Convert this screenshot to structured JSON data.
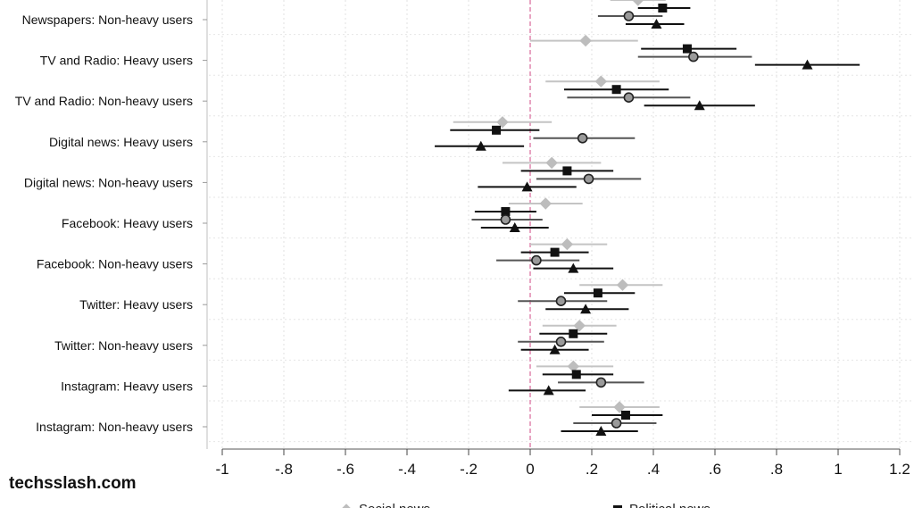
{
  "watermark": "techsslash.com",
  "chart_data": {
    "type": "scatter",
    "subtype": "coefficient-plot-with-confidence-intervals",
    "orientation": "horizontal",
    "xlim": [
      -1,
      1.2
    ],
    "xticks": [
      -1,
      -0.8,
      -0.6,
      -0.4,
      -0.2,
      0,
      0.2,
      0.4,
      0.6,
      0.8,
      1,
      1.2
    ],
    "xtick_labels": [
      "-1",
      "-.8",
      "-.6",
      "-.4",
      "-.2",
      "0",
      ".2",
      ".4",
      ".6",
      ".8",
      "1",
      "1.2"
    ],
    "reference_line": 0,
    "grid": true,
    "legend_placement": "bottom",
    "legend_labels": [
      "Social news",
      "Political news"
    ],
    "categories": [
      "Newspapers: Non-heavy users",
      "TV and Radio: Heavy users",
      "TV and Radio: Non-heavy users",
      "Digital news: Heavy users",
      "Digital news: Non-heavy users",
      "Facebook: Heavy users",
      "Facebook: Non-heavy users",
      "Twitter: Heavy users",
      "Twitter: Non-heavy users",
      "Instagram: Heavy users",
      "Instagram: Non-heavy users"
    ],
    "series": [
      {
        "marker": "diamond",
        "color": "#bdbdbd",
        "estimates": [
          0.35,
          0.18,
          0.23,
          -0.09,
          0.07,
          0.05,
          0.12,
          0.3,
          0.16,
          0.14,
          0.29
        ],
        "ci_low": [
          0.26,
          0.0,
          0.05,
          -0.25,
          -0.09,
          -0.07,
          0.0,
          0.16,
          0.04,
          0.02,
          0.16
        ],
        "ci_high": [
          0.44,
          0.35,
          0.42,
          0.07,
          0.23,
          0.17,
          0.25,
          0.43,
          0.28,
          0.27,
          0.42
        ]
      },
      {
        "marker": "square",
        "color": "#111111",
        "estimates": [
          0.43,
          0.51,
          0.28,
          -0.11,
          0.12,
          -0.08,
          0.08,
          0.22,
          0.14,
          0.15,
          0.31
        ],
        "ci_low": [
          0.35,
          0.36,
          0.11,
          -0.26,
          -0.03,
          -0.18,
          -0.03,
          0.11,
          0.03,
          0.04,
          0.2
        ],
        "ci_high": [
          0.52,
          0.67,
          0.45,
          0.03,
          0.27,
          0.02,
          0.19,
          0.34,
          0.25,
          0.27,
          0.43
        ]
      },
      {
        "marker": "circle",
        "color": "#555555",
        "estimates": [
          0.32,
          0.53,
          0.32,
          0.17,
          0.19,
          -0.08,
          0.02,
          0.1,
          0.1,
          0.23,
          0.28
        ],
        "ci_low": [
          0.22,
          0.35,
          0.12,
          0.01,
          0.02,
          -0.19,
          -0.11,
          -0.04,
          -0.04,
          0.09,
          0.14
        ],
        "ci_high": [
          0.43,
          0.72,
          0.52,
          0.34,
          0.36,
          0.04,
          0.16,
          0.25,
          0.24,
          0.37,
          0.41
        ]
      },
      {
        "marker": "triangle",
        "color": "#111111",
        "estimates": [
          0.41,
          0.9,
          0.55,
          -0.16,
          -0.01,
          -0.05,
          0.14,
          0.18,
          0.08,
          0.06,
          0.23
        ],
        "ci_low": [
          0.31,
          0.73,
          0.37,
          -0.31,
          -0.17,
          -0.16,
          0.01,
          0.05,
          -0.03,
          -0.07,
          0.1
        ],
        "ci_high": [
          0.5,
          1.07,
          0.73,
          -0.02,
          0.15,
          0.06,
          0.27,
          0.32,
          0.19,
          0.18,
          0.35
        ]
      }
    ]
  }
}
